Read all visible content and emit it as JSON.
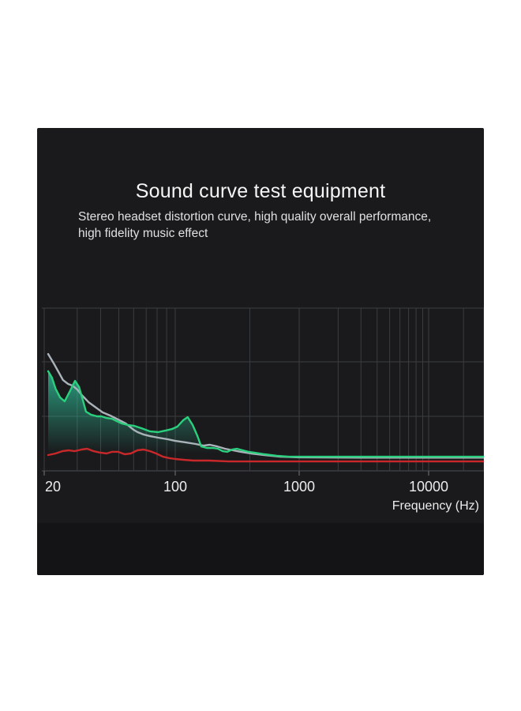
{
  "panel": {
    "title": "Sound curve test equipment",
    "subtitle_line1": "Stereo headset distortion curve, high quality overall performance,",
    "subtitle_line2": "high fidelity music effect"
  },
  "chart_data": {
    "type": "line",
    "title": "",
    "xlabel": "Frequency (Hz)",
    "ylabel": "",
    "x_scale": "log",
    "x_range_hz": [
      20,
      30000
    ],
    "y_range_relative": [
      0,
      100
    ],
    "grid": "on",
    "legend": "none",
    "x_ticks": [
      {
        "f": 20,
        "label": "20"
      },
      {
        "f": 100,
        "label": "100"
      },
      {
        "f": 1000,
        "label": "1000"
      },
      {
        "f": 10000,
        "label": "10000"
      }
    ],
    "grid_freqs": [
      20,
      30,
      40,
      50,
      60,
      70,
      80,
      90,
      100,
      400,
      1000,
      2000,
      3000,
      4000,
      5000,
      6000,
      7000,
      8000,
      9000,
      10000,
      20000,
      30000
    ],
    "h_grid_values": [
      0,
      33.5,
      67,
      100
    ],
    "colors": {
      "panel_bg": "#1a1a1c",
      "panel_bottom": "#141416",
      "grid": "#3a3d41",
      "axis_line": "#4b4e52",
      "tick_text": "#ececec",
      "area_fill": "#2fc9a0"
    },
    "series": [
      {
        "name": "gray-curve",
        "color": "#a9b3b9",
        "points": [
          [
            21,
            71.8
          ],
          [
            22.5,
            66
          ],
          [
            24,
            60.2
          ],
          [
            25.2,
            55.8
          ],
          [
            26.8,
            53.4
          ],
          [
            28.3,
            52.4
          ],
          [
            30,
            50
          ],
          [
            32,
            46.1
          ],
          [
            34.5,
            42.2
          ],
          [
            37.3,
            39.3
          ],
          [
            41,
            35.9
          ],
          [
            45,
            34
          ],
          [
            49.5,
            31.6
          ],
          [
            54.5,
            29.1
          ],
          [
            60,
            25.2
          ],
          [
            63,
            23.8
          ],
          [
            68,
            22.3
          ],
          [
            73,
            21.4
          ],
          [
            81,
            20.4
          ],
          [
            91,
            19.4
          ],
          [
            100,
            18.4
          ],
          [
            121,
            17.5
          ],
          [
            146,
            16.5
          ],
          [
            169,
            15.5
          ],
          [
            190,
            16
          ],
          [
            218,
            15
          ],
          [
            252,
            13.6
          ],
          [
            292,
            12.6
          ],
          [
            338,
            11.7
          ],
          [
            409,
            10.7
          ],
          [
            525,
            9.7
          ],
          [
            700,
            8.7
          ],
          [
            1000,
            8.3
          ],
          [
            3000,
            8.1
          ],
          [
            10000,
            8.1
          ],
          [
            30000,
            8.1
          ]
        ]
      },
      {
        "name": "red-curve",
        "color": "#c9282a",
        "points": [
          [
            21,
            9.7
          ],
          [
            23,
            10.7
          ],
          [
            25,
            12.1
          ],
          [
            27,
            12.6
          ],
          [
            29,
            12.1
          ],
          [
            31.7,
            13.1
          ],
          [
            33.9,
            13.6
          ],
          [
            36.7,
            12.1
          ],
          [
            39.7,
            11.2
          ],
          [
            43,
            10.7
          ],
          [
            46,
            11.7
          ],
          [
            49.5,
            11.7
          ],
          [
            53.7,
            10.2
          ],
          [
            58,
            10.7
          ],
          [
            62.7,
            12.6
          ],
          [
            67.8,
            13.1
          ],
          [
            73.4,
            12.1
          ],
          [
            79,
            10.7
          ],
          [
            86,
            8.7
          ],
          [
            93,
            7.8
          ],
          [
            100,
            7.3
          ],
          [
            116,
            6.8
          ],
          [
            140,
            6.3
          ],
          [
            188,
            6.3
          ],
          [
            270,
            5.8
          ],
          [
            420,
            5.8
          ],
          [
            1000,
            5.8
          ],
          [
            10000,
            5.8
          ],
          [
            30000,
            5.8
          ]
        ]
      },
      {
        "name": "green-curve",
        "color": "#2bd07e",
        "area": true,
        "points": [
          [
            21,
            61.2
          ],
          [
            22,
            57.3
          ],
          [
            23,
            50.5
          ],
          [
            24.3,
            45.1
          ],
          [
            25.7,
            42.7
          ],
          [
            27.3,
            48.5
          ],
          [
            29.2,
            55.3
          ],
          [
            30.7,
            51.5
          ],
          [
            32,
            44.2
          ],
          [
            33.4,
            36.4
          ],
          [
            35.5,
            34.5
          ],
          [
            38.3,
            33.5
          ],
          [
            40.4,
            33.5
          ],
          [
            43,
            32.5
          ],
          [
            46,
            32
          ],
          [
            48.7,
            30.6
          ],
          [
            52,
            29.1
          ],
          [
            55.6,
            28.2
          ],
          [
            60,
            27.7
          ],
          [
            66,
            26.2
          ],
          [
            73,
            24.3
          ],
          [
            81,
            23.8
          ],
          [
            89,
            24.8
          ],
          [
            96,
            25.7
          ],
          [
            104,
            27.2
          ],
          [
            116,
            31.1
          ],
          [
            126,
            33
          ],
          [
            138,
            28.2
          ],
          [
            151,
            21.4
          ],
          [
            162,
            15
          ],
          [
            180,
            14.1
          ],
          [
            202,
            14.1
          ],
          [
            221,
            13.6
          ],
          [
            241,
            12.1
          ],
          [
            263,
            11.7
          ],
          [
            288,
            13.1
          ],
          [
            314,
            13.6
          ],
          [
            350,
            12.6
          ],
          [
            390,
            11.7
          ],
          [
            433,
            11.2
          ],
          [
            525,
            10.2
          ],
          [
            660,
            9.2
          ],
          [
            826,
            8.7
          ],
          [
            1000,
            8.7
          ],
          [
            3000,
            8.7
          ],
          [
            10000,
            8.7
          ],
          [
            30000,
            8.7
          ]
        ]
      }
    ]
  }
}
